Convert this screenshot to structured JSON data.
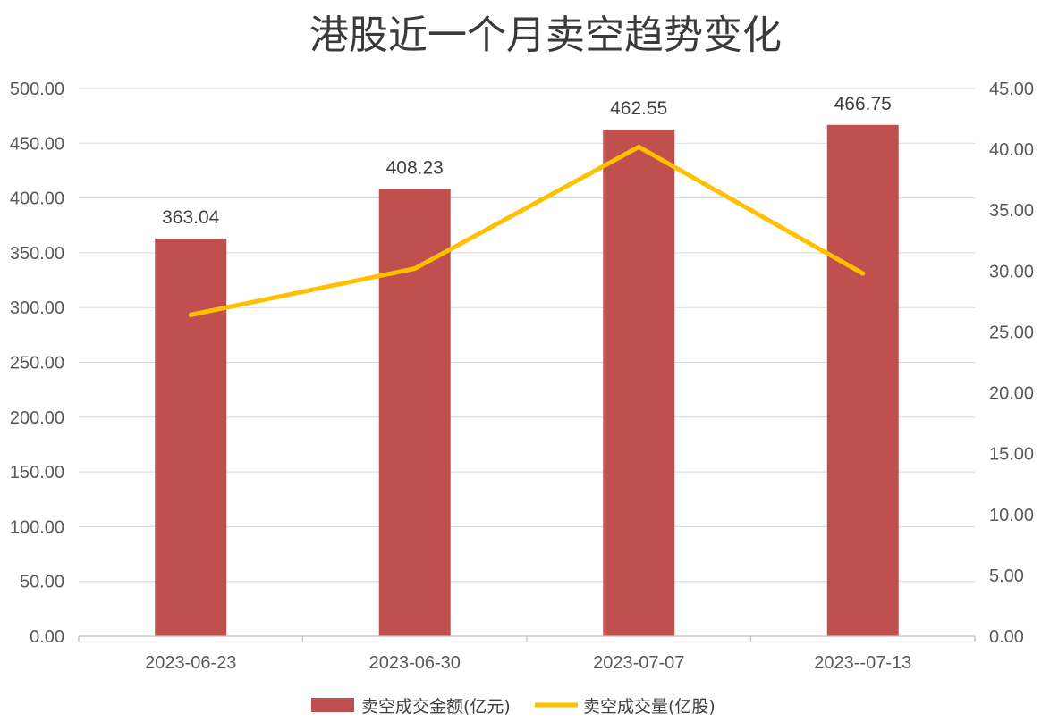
{
  "chart_data": {
    "type": "bar",
    "title": "港股近一个月卖空趋势变化",
    "categories": [
      "2023-06-23",
      "2023-06-30",
      "2023-07-07",
      "2023-​-07-13"
    ],
    "series": [
      {
        "name": "卖空成交金额(亿元)",
        "type": "bar",
        "axis": "left",
        "values": [
          363.04,
          408.23,
          462.55,
          466.75
        ],
        "data_labels": [
          "363.04",
          "408.23",
          "462.55",
          "466.75"
        ],
        "color": "#C0504D"
      },
      {
        "name": "卖空成交量(亿股)",
        "type": "line",
        "axis": "right",
        "values": [
          26.4,
          30.2,
          40.2,
          29.8
        ],
        "color": "#FFC000"
      }
    ],
    "y_left": {
      "ylim": [
        0,
        500
      ],
      "ticks": [
        "0.00",
        "50.00",
        "100.00",
        "150.00",
        "200.00",
        "250.00",
        "300.00",
        "350.00",
        "400.00",
        "450.00",
        "500.00"
      ]
    },
    "y_right": {
      "ylim": [
        0,
        45
      ],
      "ticks": [
        "0.00",
        "5.00",
        "10.00",
        "15.00",
        "20.00",
        "25.00",
        "30.00",
        "35.00",
        "40.00",
        "45.00"
      ]
    },
    "grid": true,
    "legend": "bottom"
  }
}
